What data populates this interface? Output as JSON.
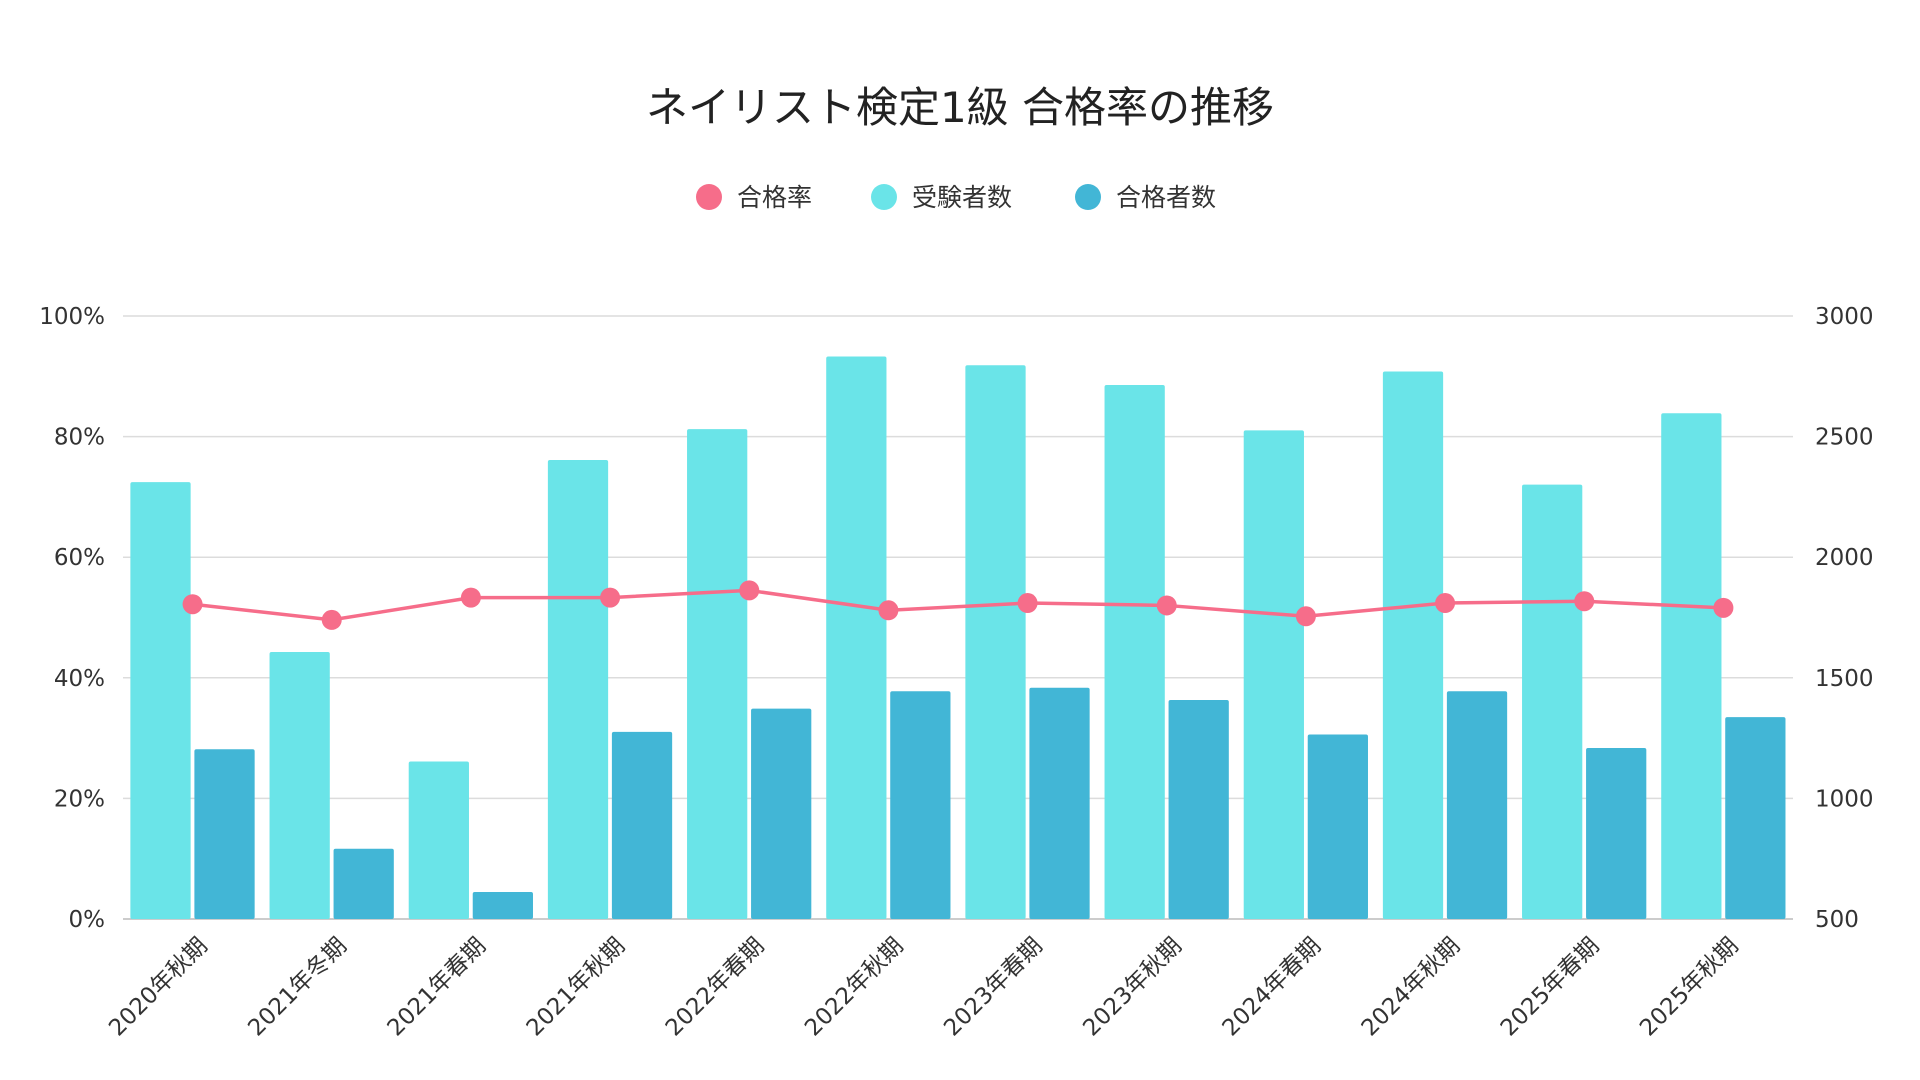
{
  "chart_data": {
    "type": "bar",
    "title": "ネイリスト検定1級 合格率の推移",
    "categories": [
      "2020年秋期",
      "2021年冬期",
      "2021年春期",
      "2021年秋期",
      "2022年春期",
      "2022年秋期",
      "2023年春期",
      "2023年秋期",
      "2024年春期",
      "2024年秋期",
      "2025年春期",
      "2025年秋期"
    ],
    "series": [
      {
        "name": "合格率",
        "type": "line",
        "axis": "left",
        "color": "#f66d8a",
        "values": [
          52.2,
          49.6,
          53.3,
          53.3,
          54.5,
          51.2,
          52.4,
          52.0,
          50.2,
          52.4,
          52.7,
          51.6
        ]
      },
      {
        "name": "受験者数",
        "type": "bar",
        "axis": "right",
        "color": "#6ae4e8",
        "values": [
          2311,
          1607,
          1153,
          2403,
          2531,
          2832,
          2796,
          2714,
          2526,
          2770,
          2301,
          2597
        ]
      },
      {
        "name": "合格者数",
        "type": "bar",
        "axis": "right",
        "color": "#42b6d6",
        "values": [
          1204,
          791,
          612,
          1276,
          1372,
          1444,
          1459,
          1408,
          1265,
          1444,
          1209,
          1337
        ]
      }
    ],
    "y_left": {
      "ylim": [
        0,
        100
      ],
      "ticks": [
        0,
        20,
        40,
        60,
        80,
        100
      ],
      "tick_labels": [
        "0%",
        "20%",
        "40%",
        "60%",
        "80%",
        "100%"
      ]
    },
    "y_right": {
      "ylim": [
        500,
        3000
      ],
      "ticks": [
        500,
        1000,
        1500,
        2000,
        2500,
        3000
      ],
      "tick_labels": [
        "500",
        "1000",
        "1500",
        "2000",
        "2500",
        "3000"
      ]
    },
    "grid": true,
    "legend_placement": "top-center",
    "xlabel": "",
    "ylabel": ""
  }
}
